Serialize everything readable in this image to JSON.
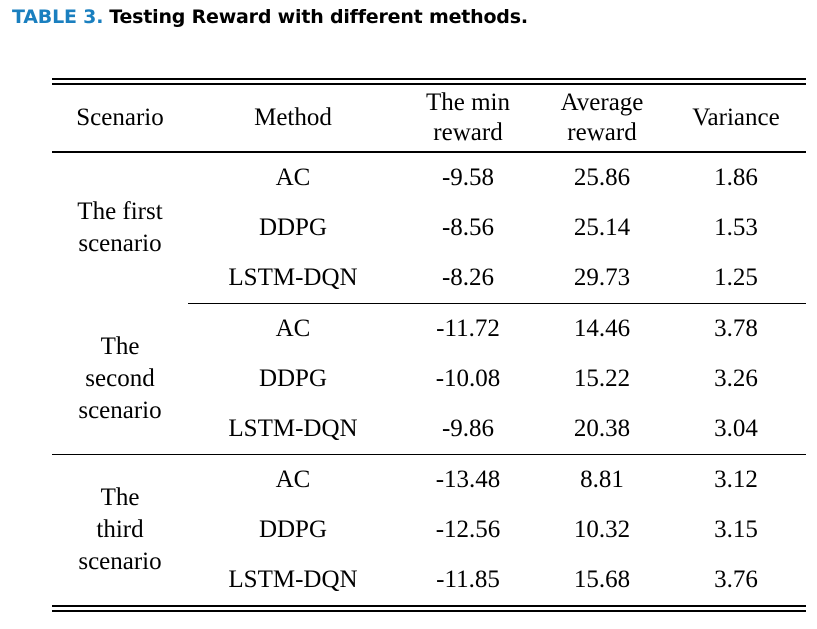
{
  "caption": {
    "label": "TABLE 3.",
    "text": "Testing Reward with different methods."
  },
  "table": {
    "headers": {
      "scenario": "Scenario",
      "method": "Method",
      "min_reward_line1": "The min",
      "min_reward_line2": "reward",
      "avg_reward_line1": "Average",
      "avg_reward_line2": "reward",
      "variance": "Variance"
    },
    "groups": [
      {
        "scenario_lines": [
          "The first",
          "scenario"
        ],
        "rows": [
          {
            "method": "AC",
            "min": "-9.58",
            "avg": "25.86",
            "var": "1.86"
          },
          {
            "method": "DDPG",
            "min": "-8.56",
            "avg": "25.14",
            "var": "1.53"
          },
          {
            "method": "LSTM-DQN",
            "min": "-8.26",
            "avg": "29.73",
            "var": "1.25"
          }
        ]
      },
      {
        "scenario_lines": [
          "The",
          "second",
          "scenario"
        ],
        "rows": [
          {
            "method": "AC",
            "min": "-11.72",
            "avg": "14.46",
            "var": "3.78"
          },
          {
            "method": "DDPG",
            "min": "-10.08",
            "avg": "15.22",
            "var": "3.26"
          },
          {
            "method": "LSTM-DQN",
            "min": "-9.86",
            "avg": "20.38",
            "var": "3.04"
          }
        ]
      },
      {
        "scenario_lines": [
          "The",
          "third",
          "scenario"
        ],
        "rows": [
          {
            "method": "AC",
            "min": "-13.48",
            "avg": "8.81",
            "var": "3.12"
          },
          {
            "method": "DDPG",
            "min": "-12.56",
            "avg": "10.32",
            "var": "3.15"
          },
          {
            "method": "LSTM-DQN",
            "min": "-11.85",
            "avg": "15.68",
            "var": "3.76"
          }
        ]
      }
    ]
  }
}
